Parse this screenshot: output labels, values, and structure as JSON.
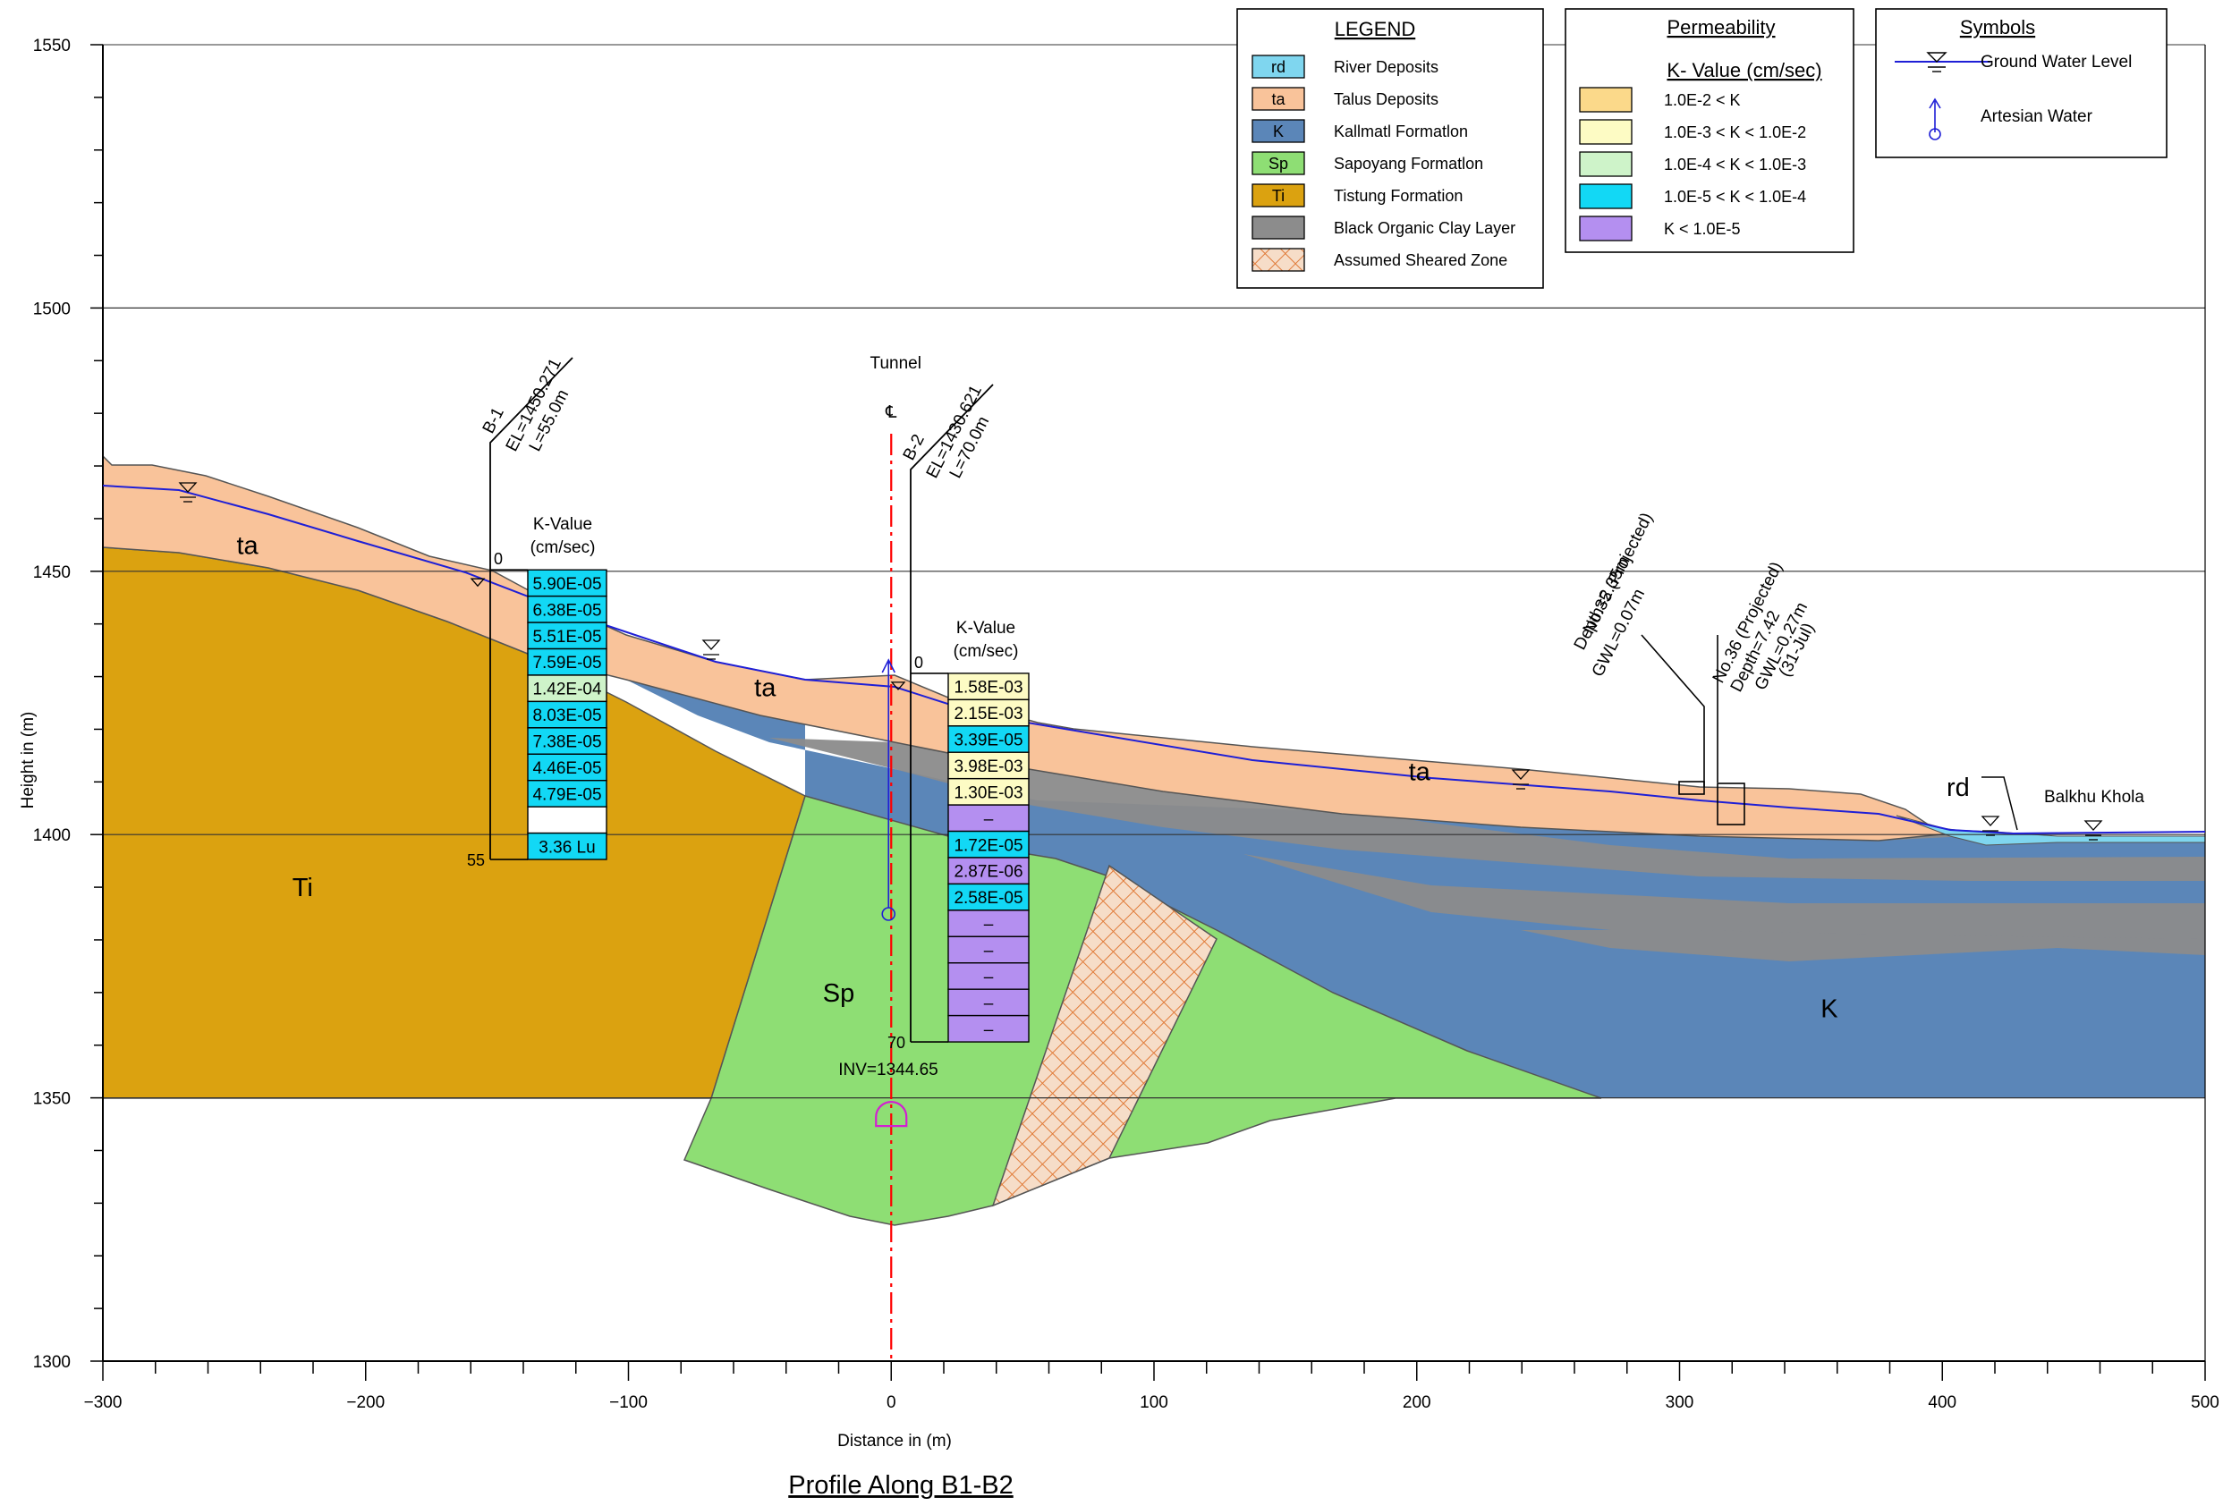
{
  "figure_title": "Profile Along B1-B2",
  "axes": {
    "x_label": "Distance in (m)",
    "y_label": "Height in (m)",
    "x_min": -300,
    "x_max": 500,
    "y_min": 1300,
    "y_max": 1550,
    "x_ticks": [
      "−300",
      "−200",
      "−100",
      "0",
      "100",
      "200",
      "300",
      "400",
      "500"
    ],
    "y_ticks": [
      "1300",
      "1350",
      "1400",
      "1450",
      "1500",
      "1550"
    ],
    "grid_lines_y": [
      1350,
      1400,
      1450,
      1500
    ]
  },
  "legend": {
    "title": "LEGEND",
    "items": [
      {
        "code": "rd",
        "label": "River Deposits",
        "color": "#7fd6ef"
      },
      {
        "code": "ta",
        "label": "Talus Deposits",
        "color": "#f9c39a"
      },
      {
        "code": "K",
        "label": "Kallmatl Formatlon",
        "color": "#5b86b8"
      },
      {
        "code": "Sp",
        "label": "Sapoyang Formatlon",
        "color": "#8ede74"
      },
      {
        "code": "Ti",
        "label": "Tistung Formation",
        "color": "#dba210"
      },
      {
        "code": "",
        "label": "Black Organic Clay Layer",
        "color": "#8c8c8c"
      },
      {
        "code": "",
        "label": "Assumed Sheared Zone",
        "color": "#f6ddc8"
      }
    ]
  },
  "permeability": {
    "title": "Permeability",
    "subtitle": "K- Value (cm/sec)",
    "items": [
      {
        "label": "1.0E-2 < K",
        "color": "#fbd98a"
      },
      {
        "label": "1.0E-3 < K < 1.0E-2",
        "color": "#fdfbc4"
      },
      {
        "label": "1.0E-4 < K < 1.0E-3",
        "color": "#cef3c9"
      },
      {
        "label": "1.0E-5 < K < 1.0E-4",
        "color": "#12d8f5"
      },
      {
        "label": "K < 1.0E-5",
        "color": "#b48ff0"
      }
    ]
  },
  "symbols": {
    "title": "Symbols",
    "items": [
      {
        "label": "Ground Water Level",
        "icon": "ground-water-level-icon"
      },
      {
        "label": "Artesian Water",
        "icon": "artesian-water-icon"
      }
    ]
  },
  "tunnel": {
    "label": "Tunnel",
    "centerline": "℄",
    "inv_label": "INV=1344.65",
    "x": 0,
    "inv": 1344.65
  },
  "boreholes": [
    {
      "id": "B-1",
      "el_label": "EL=1450.271",
      "len_label": "L=55.0m",
      "x": -153,
      "el": 1450.271,
      "length": 55,
      "top_label": "0",
      "bottom_label": "55",
      "k_header_1": "K-Value",
      "k_header_2": "(cm/sec)",
      "k_values": [
        {
          "text": "5.90E-05",
          "color": "#12d8f5"
        },
        {
          "text": "6.38E-05",
          "color": "#12d8f5"
        },
        {
          "text": "5.51E-05",
          "color": "#12d8f5"
        },
        {
          "text": "7.59E-05",
          "color": "#12d8f5"
        },
        {
          "text": "1.42E-04",
          "color": "#cef3c9"
        },
        {
          "text": "8.03E-05",
          "color": "#12d8f5"
        },
        {
          "text": "7.38E-05",
          "color": "#12d8f5"
        },
        {
          "text": "4.46E-05",
          "color": "#12d8f5"
        },
        {
          "text": "4.79E-05",
          "color": "#12d8f5"
        },
        {
          "text": "",
          "color": "#ffffff"
        },
        {
          "text": "3.36 Lu",
          "color": "#12d8f5"
        }
      ]
    },
    {
      "id": "B-2",
      "el_label": "EL=1430.621",
      "len_label": "L=70.0m",
      "x": 8,
      "el": 1430.621,
      "length": 70,
      "top_label": "0",
      "bottom_label": "70",
      "k_header_1": "K-Value",
      "k_header_2": "(cm/sec)",
      "k_values": [
        {
          "text": "1.58E-03",
          "color": "#fdfbc4"
        },
        {
          "text": "2.15E-03",
          "color": "#fdfbc4"
        },
        {
          "text": "3.39E-05",
          "color": "#12d8f5"
        },
        {
          "text": "3.98E-03",
          "color": "#fdfbc4"
        },
        {
          "text": "1.30E-03",
          "color": "#fdfbc4"
        },
        {
          "text": "–",
          "color": "#b48ff0"
        },
        {
          "text": "1.72E-05",
          "color": "#12d8f5"
        },
        {
          "text": "2.87E-06",
          "color": "#b48ff0"
        },
        {
          "text": "2.58E-05",
          "color": "#12d8f5"
        },
        {
          "text": "–",
          "color": "#b48ff0"
        },
        {
          "text": "–",
          "color": "#b48ff0"
        },
        {
          "text": "–",
          "color": "#b48ff0"
        },
        {
          "text": "–",
          "color": "#b48ff0"
        },
        {
          "text": "–",
          "color": "#b48ff0"
        }
      ]
    }
  ],
  "projected_wells": [
    {
      "line1": "No.35 (Projected)",
      "line2": "Depth=2.35m",
      "line3": "GWL=0.07m",
      "line4": ""
    },
    {
      "line1": "No.36 (Projected)",
      "line2": "Depth=7.42",
      "line3": "GWL=0.27m",
      "line4": "(31-Jul)"
    }
  ],
  "unit_labels": [
    {
      "text": "ta",
      "x": -245,
      "y": 1455
    },
    {
      "text": "ta",
      "x": -48,
      "y": 1428
    },
    {
      "text": "ta",
      "x": 201,
      "y": 1412
    },
    {
      "text": "Ti",
      "x": -224,
      "y": 1390
    },
    {
      "text": "Sp",
      "x": -20,
      "y": 1370
    },
    {
      "text": "K",
      "x": 357,
      "y": 1367
    },
    {
      "text": "rd",
      "x": 406,
      "y": 1409
    }
  ],
  "river_label": "Balkhu Khola",
  "colors": {
    "rd": "#7fd6ef",
    "ta": "#f9c39a",
    "K": "#5b86b8",
    "Sp": "#8ede74",
    "Ti": "#dba210",
    "clay": "#8c8c8c",
    "sheared": "#f6ddc8",
    "water_line": "#1f1fd6",
    "tunnel": "#ff0000"
  }
}
